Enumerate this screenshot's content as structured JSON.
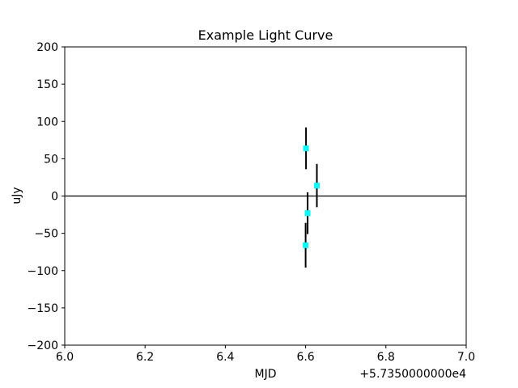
{
  "chart_data": {
    "type": "scatter",
    "title": "Example Light Curve",
    "xlabel": "MJD",
    "ylabel": "uJy",
    "x_offset_label": "+5.7350000000e4",
    "xlim": [
      6.0,
      7.0
    ],
    "ylim": [
      -200,
      200
    ],
    "x_ticks": [
      6.0,
      6.2,
      6.4,
      6.6,
      6.8,
      7.0
    ],
    "x_tick_labels": [
      "6.0",
      "6.2",
      "6.4",
      "6.6",
      "6.8",
      "7.0"
    ],
    "y_ticks": [
      200,
      150,
      100,
      50,
      0,
      -50,
      -100,
      -150,
      -200
    ],
    "y_tick_labels": [
      "200",
      "150",
      "100",
      "50",
      "0",
      "−50",
      "−100",
      "−150",
      "−200"
    ],
    "grid": false,
    "zero_line": true,
    "series": [
      {
        "marker": "square",
        "color": "#00ffff",
        "errorbar_color": "#000000",
        "points": [
          {
            "x": 6.601,
            "y": 64,
            "yerr": 28
          },
          {
            "x": 6.605,
            "y": -23,
            "yerr": 28
          },
          {
            "x": 6.628,
            "y": 14,
            "yerr": 29
          },
          {
            "x": 6.6,
            "y": -66,
            "yerr": 30
          }
        ]
      }
    ]
  }
}
